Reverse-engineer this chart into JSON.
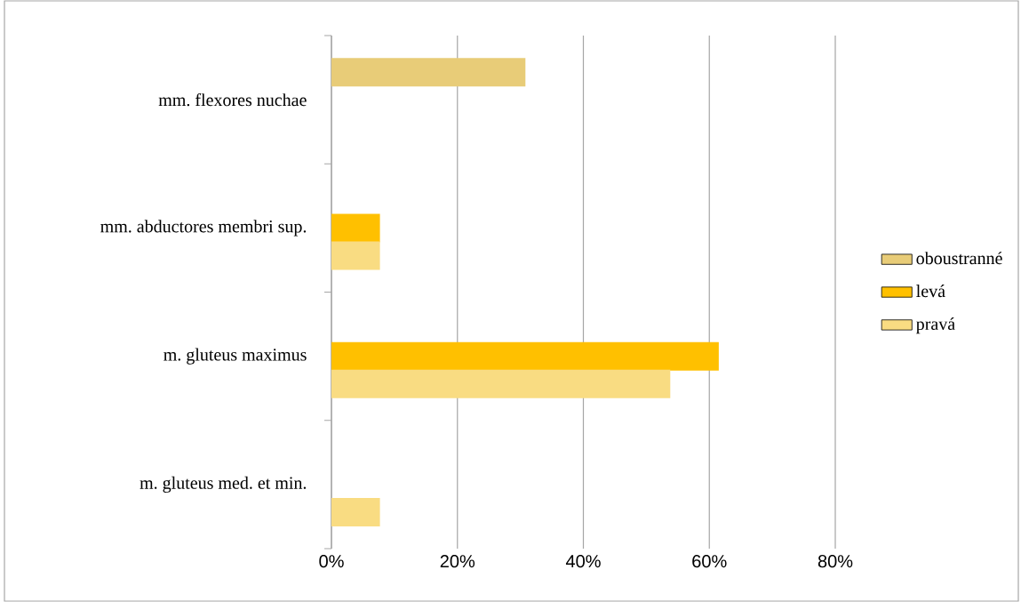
{
  "chart_data": {
    "type": "bar",
    "orientation": "horizontal",
    "categories": [
      "mm. flexores nuchae",
      "mm. abductores membri sup.",
      "m. gluteus maximus",
      "m. gluteus med. et min."
    ],
    "series": [
      {
        "name": "oboustranné",
        "color": "#e8cc78",
        "values": [
          30.8,
          null,
          null,
          null
        ]
      },
      {
        "name": "levá",
        "color": "#ffc000",
        "values": [
          null,
          7.7,
          61.5,
          null
        ]
      },
      {
        "name": "pravá",
        "color": "#f9dc82",
        "values": [
          null,
          7.7,
          53.8,
          7.7
        ]
      }
    ],
    "xlim": [
      0,
      80
    ],
    "xticks": [
      {
        "value": 0,
        "label": "0%"
      },
      {
        "value": 20,
        "label": "20%"
      },
      {
        "value": 40,
        "label": "40%"
      },
      {
        "value": 60,
        "label": "60%"
      },
      {
        "value": 80,
        "label": "80%"
      }
    ],
    "grid": "x",
    "legend": "right"
  }
}
